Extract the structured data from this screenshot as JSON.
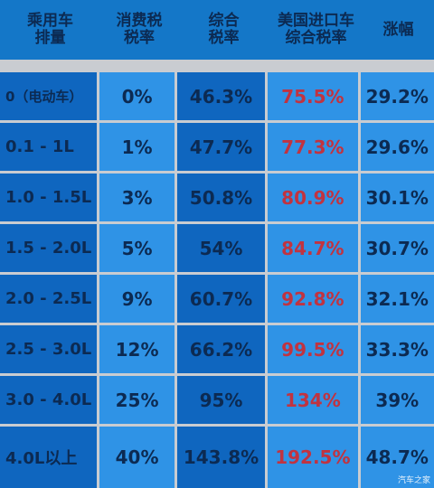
{
  "headers": [
    "乘用车\n排量",
    "消费税\n税率",
    "综合\n税率",
    "美国进口车\n综合税率",
    "涨幅"
  ],
  "rows": [
    [
      "0（电动车）",
      "0%",
      "46.3%",
      "75.5%",
      "29.2%"
    ],
    [
      "0.1 - 1L",
      "1%",
      "47.7%",
      "77.3%",
      "29.6%"
    ],
    [
      "1.0 - 1.5L",
      "3%",
      "50.8%",
      "80.9%",
      "30.1%"
    ],
    [
      "1.5 - 2.0L",
      "5%",
      "54%",
      "84.7%",
      "30.7%"
    ],
    [
      "2.0 - 2.5L",
      "9%",
      "60.7%",
      "92.8%",
      "32.1%"
    ],
    [
      "2.5 - 3.0L",
      "12%",
      "66.2%",
      "99.5%",
      "33.3%"
    ],
    [
      "3.0 - 4.0L",
      "25%",
      "95%",
      "134%",
      "39%"
    ],
    [
      "4.0L以上",
      "40%",
      "143.8%",
      "192.5%",
      "48.7%"
    ]
  ],
  "colors": {
    "header_bg": "#1477c8",
    "cell_light": "#2f93e6",
    "cell_dark": "#0f66bf",
    "text": "#0c2a52",
    "highlight_text": "#c13340",
    "gap": "#c9ccd1"
  },
  "watermark": "汽车之家"
}
